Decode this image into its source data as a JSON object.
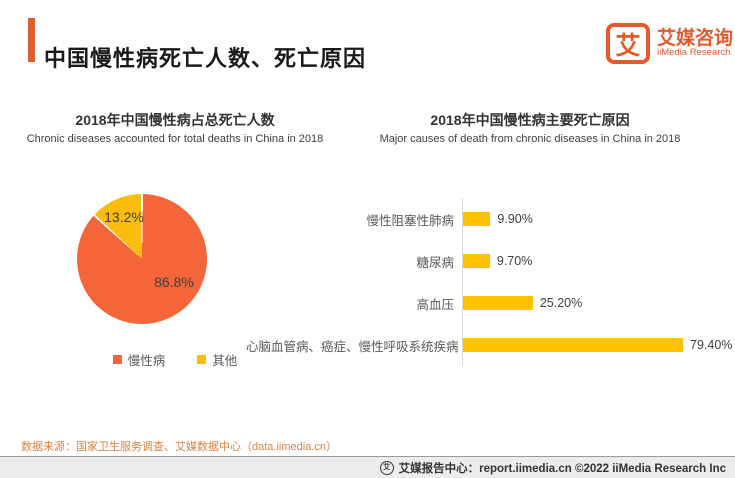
{
  "header": {
    "title": "中国慢性病死亡人数、死亡原因",
    "logo": {
      "mark": "艾",
      "name_cn": "艾媒咨询",
      "name_en": "iiMedia Research"
    }
  },
  "colors": {
    "brand": "#E55A2B",
    "pie_orange": "#F4663A",
    "pie_yellow": "#FBBD0B",
    "bar_yellow": "#FFC000",
    "source_text": "#DE8142"
  },
  "chart_data": [
    {
      "type": "pie",
      "title": "2018年中国慢性病占总死亡人数",
      "subtitle": "Chronic diseases accounted for total deaths in China in 2018",
      "slices": [
        {
          "label": "慢性病",
          "value": 86.8,
          "display": "86.8%",
          "color": "#F4663A"
        },
        {
          "label": "其他",
          "value": 13.2,
          "display": "13.2%",
          "color": "#FBBD0B"
        }
      ],
      "legend_position": "bottom"
    },
    {
      "type": "bar",
      "orientation": "horizontal",
      "title": "2018年中国慢性病主要死亡原因",
      "subtitle": "Major causes of death from chronic diseases in China in 2018",
      "categories": [
        "慢性阻塞性肺病",
        "糖尿病",
        "高血压",
        "心脑血管病、癌症、慢性呼吸系统疾病"
      ],
      "values": [
        9.9,
        9.7,
        25.2,
        79.4
      ],
      "value_labels": [
        "9.90%",
        "9.70%",
        "25.20%",
        "79.40%"
      ],
      "xlim": [
        0,
        85
      ],
      "bar_color": "#FFC000",
      "grid": false,
      "legend": false
    }
  ],
  "source_note": "数据来源：国家卫生服务调查、艾媒数据中心（data.iimedia.cn）",
  "footer": {
    "text": "艾媒报告中心：report.iimedia.cn  ©2022  iiMedia Research Inc"
  }
}
